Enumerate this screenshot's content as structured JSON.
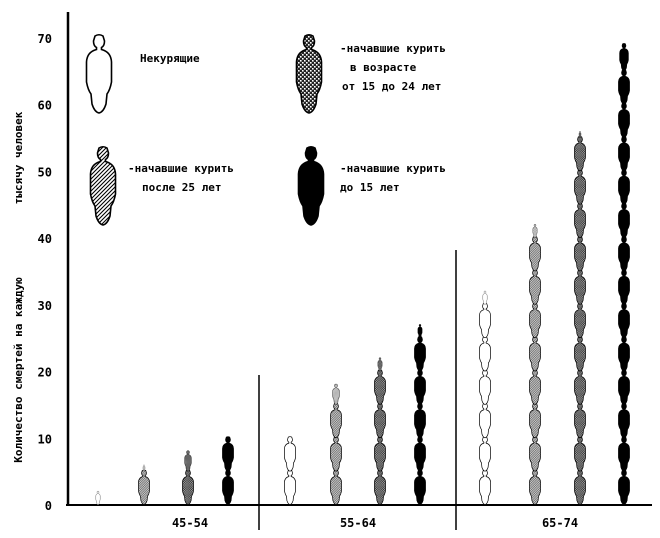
{
  "chart_data": {
    "type": "bar",
    "subtype": "pictogram-stacked",
    "unit_per_figure": 5,
    "categories": [
      "45-54",
      "55-64",
      "65-74"
    ],
    "series": [
      {
        "name": "Некурящие",
        "pattern": "white",
        "values": [
          2,
          10,
          32
        ]
      },
      {
        "name": "-начавшие курить после 25 лет",
        "pattern": "hatch",
        "values": [
          6,
          18,
          42
        ]
      },
      {
        "name": "-начавшие курить в возрасте от 15 до 24 лет",
        "pattern": "dots",
        "values": [
          8,
          22,
          56
        ]
      },
      {
        "name": "-начавшие курить до 15 лет",
        "pattern": "black",
        "values": [
          10,
          27,
          69
        ]
      }
    ],
    "ylabel_line1": "тысячу человек",
    "ylabel_line2": "Количество смертей на каждую",
    "ylim": [
      0,
      70
    ],
    "yticks": [
      "0",
      "10",
      "20",
      "30",
      "40",
      "50",
      "60",
      "70"
    ],
    "legend": [
      {
        "series": 0,
        "lines": [
          "Некурящие"
        ]
      },
      {
        "series": 2,
        "lines": [
          "-начавшие курить",
          "в возрасте",
          "от 15 до 24 лет"
        ]
      },
      {
        "series": 1,
        "lines": [
          "-начавшие курить",
          "после 25 лет"
        ]
      },
      {
        "series": 3,
        "lines": [
          "-начавшие курить",
          "до 15 лет"
        ]
      }
    ],
    "legend_placement": "top-left"
  }
}
